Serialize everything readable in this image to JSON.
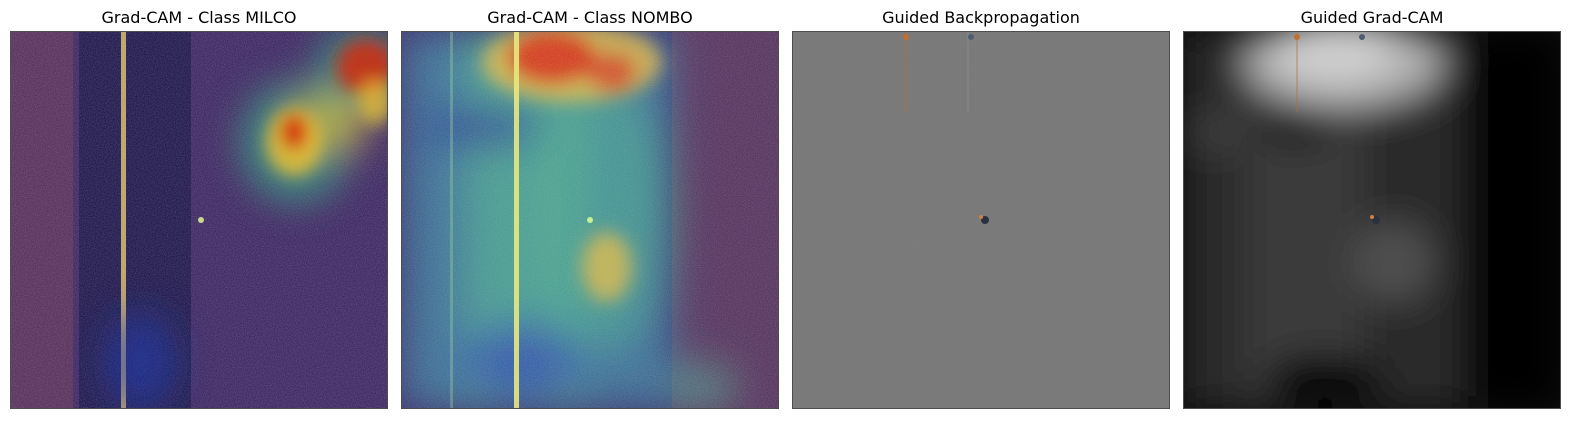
{
  "panels": [
    {
      "title": "Grad-CAM - Class MILCO",
      "image": "sonar-heatmap-overlay"
    },
    {
      "title": "Grad-CAM - Class NOMBO",
      "image": "sonar-heatmap-overlay"
    },
    {
      "title": "Guided Backpropagation",
      "image": "gradient-map-gray"
    },
    {
      "title": "Guided Grad-CAM",
      "image": "grayscale-saliency"
    }
  ],
  "colors": {
    "background": "#ffffff",
    "heat_hot": "#d42a10",
    "heat_warm": "#f2c230",
    "heat_mid": "#3fae8a",
    "heat_cold": "#141a6e",
    "guided_gray": "#767676"
  }
}
